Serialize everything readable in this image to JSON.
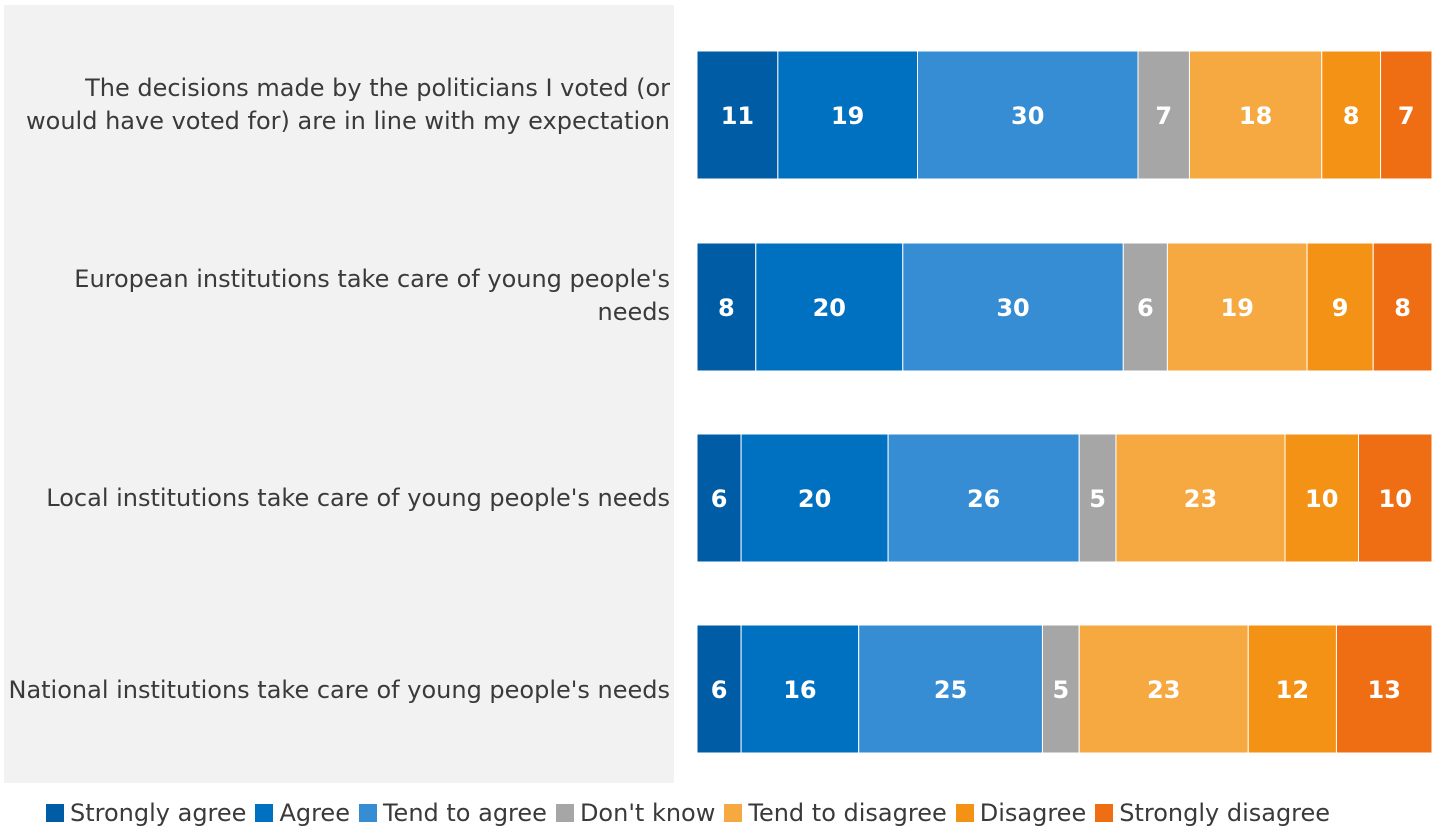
{
  "chart_data": {
    "type": "bar",
    "orientation": "horizontal",
    "stacked": true,
    "categories": [
      "The decisions made by the politicians I voted (or would have voted for) are in line with my expectation",
      "European institutions take care of young people's needs",
      "Local institutions take care of young people's needs",
      "National institutions take care of young people's needs"
    ],
    "series": [
      {
        "name": "Strongly agree",
        "color": "#005ca4",
        "values": [
          11,
          8,
          6,
          6
        ]
      },
      {
        "name": "Agree",
        "color": "#0070c0",
        "values": [
          19,
          20,
          20,
          16
        ]
      },
      {
        "name": "Tend to agree",
        "color": "#368dd4",
        "values": [
          30,
          30,
          26,
          25
        ]
      },
      {
        "name": "Don't know",
        "color": "#a6a6a6",
        "values": [
          7,
          6,
          5,
          5
        ]
      },
      {
        "name": "Tend to disagree",
        "color": "#f6a841",
        "values": [
          18,
          19,
          23,
          23
        ]
      },
      {
        "name": "Disagree",
        "color": "#f39215",
        "values": [
          8,
          9,
          10,
          12
        ]
      },
      {
        "name": "Strongly disagree",
        "color": "#f06e13",
        "values": [
          7,
          8,
          10,
          13
        ]
      }
    ],
    "data_labels": true,
    "legend_position": "bottom",
    "grid": false,
    "title": "",
    "xlabel": "",
    "ylabel": ""
  }
}
